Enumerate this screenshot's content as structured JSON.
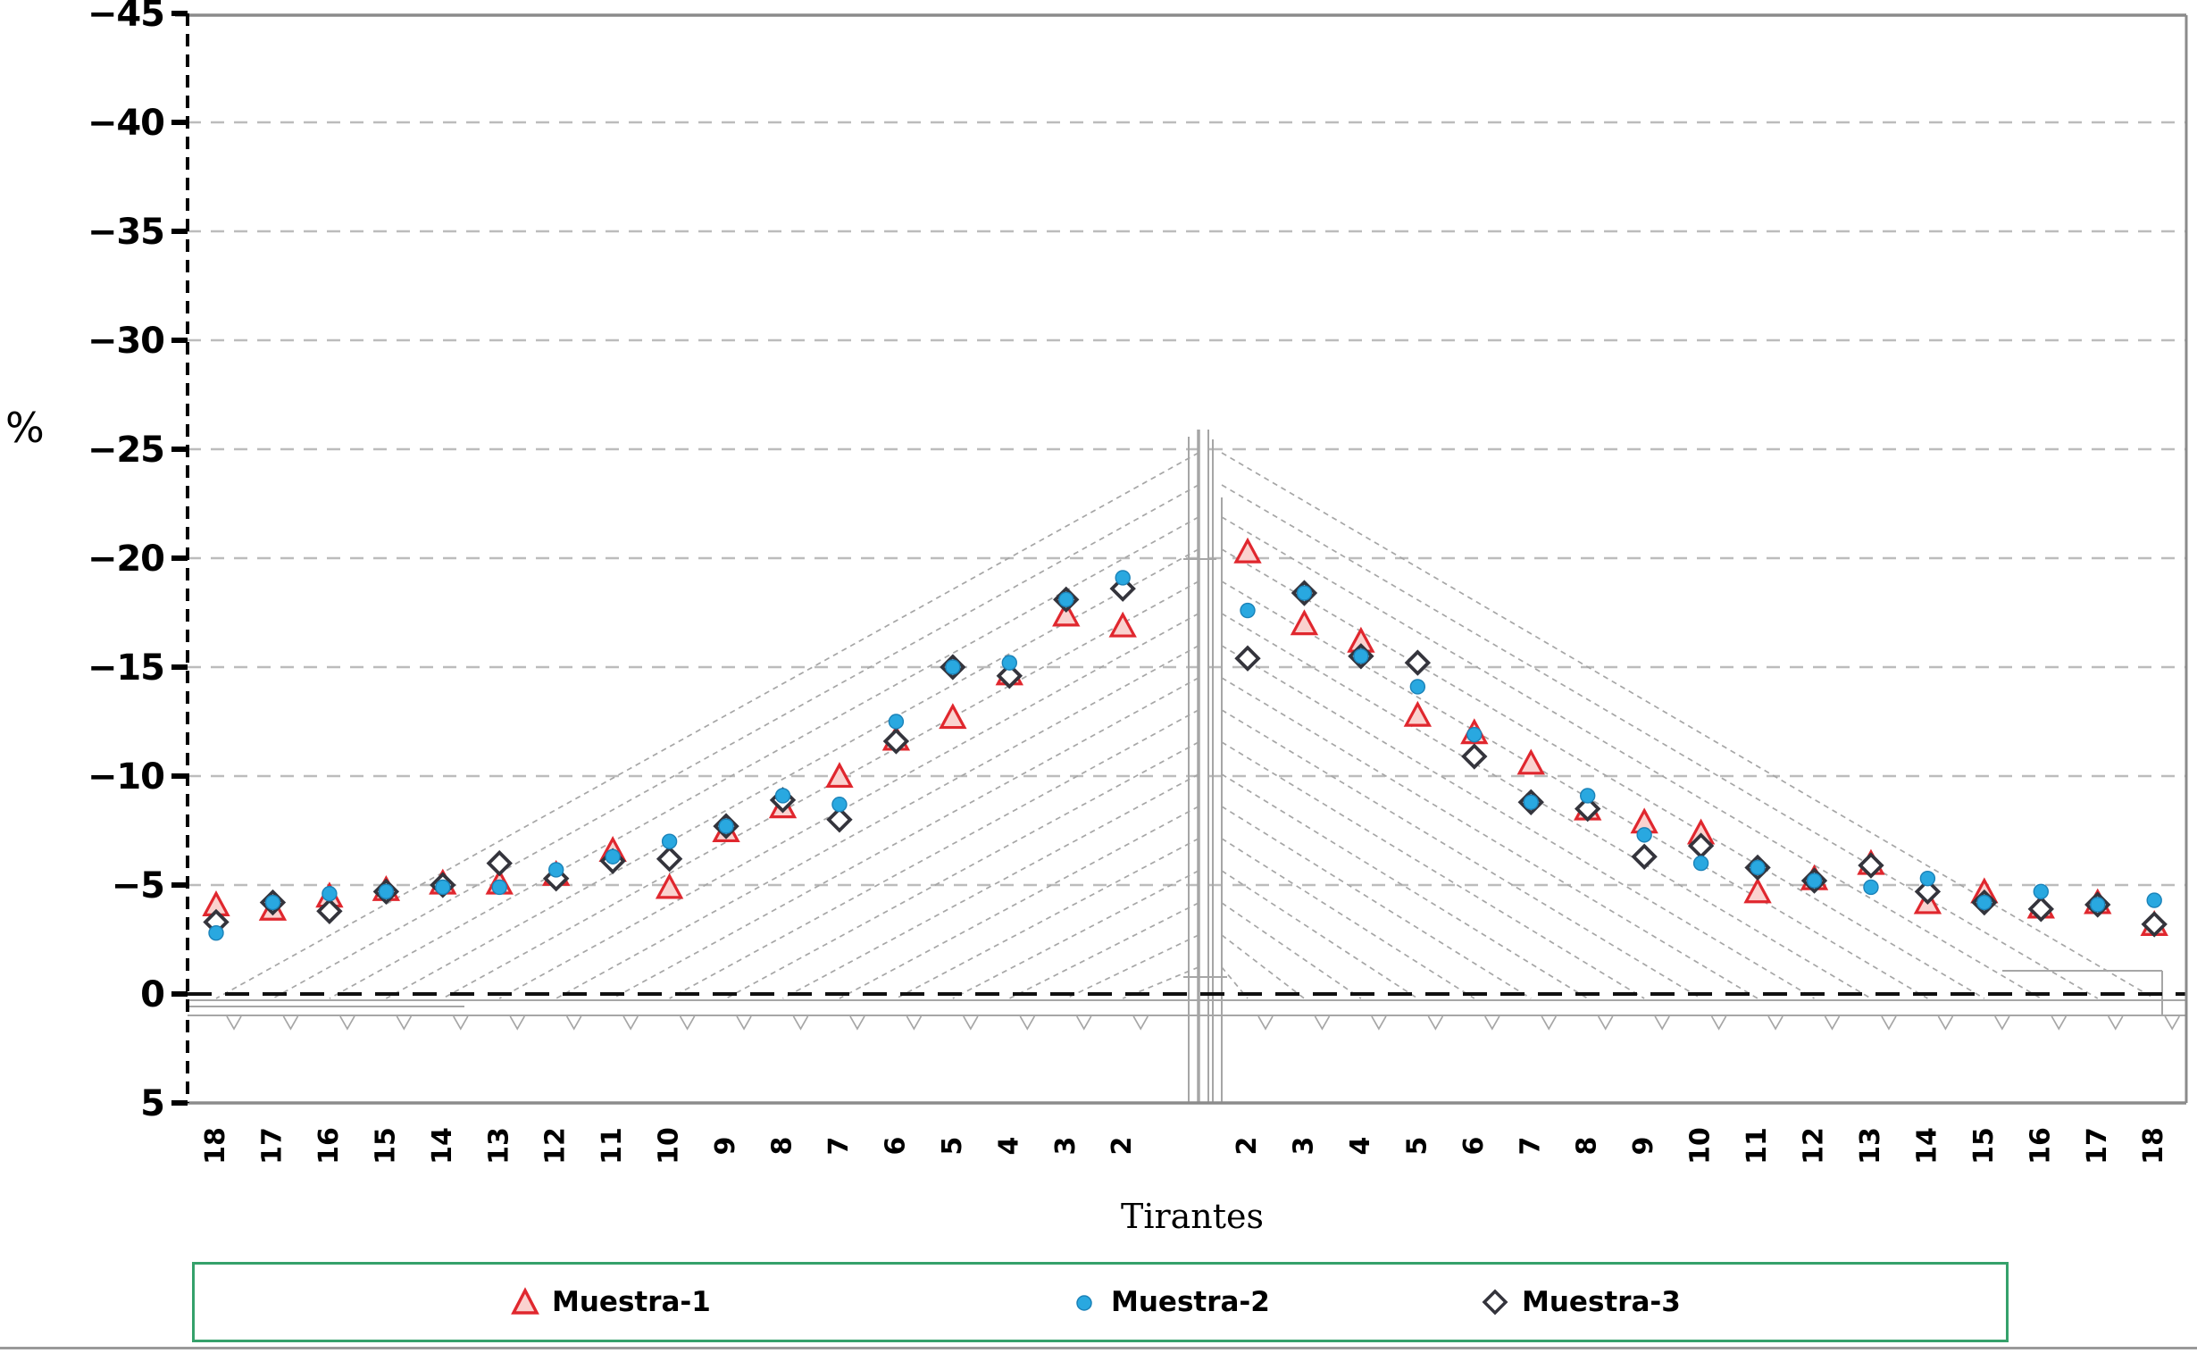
{
  "figure": {
    "ylabel": "%",
    "xlabel": "Tirantes"
  },
  "legend": {
    "items": [
      {
        "label": "Muestra-1",
        "marker": "open-triangle"
      },
      {
        "label": "Muestra-2",
        "marker": "filled-circle"
      },
      {
        "label": "Muestra-3",
        "marker": "open-diamond"
      }
    ],
    "border_color": "#35a16b",
    "position": "bottom"
  },
  "colors": {
    "muestra1_stroke": "#e0272e",
    "muestra1_fill": "#fad2cf",
    "muestra2_fill": "#29a8e0",
    "muestra3_stroke": "#34343c",
    "grid": "#bcbcbc",
    "axis_border": "#8b8b8b",
    "zero_line": "#101010",
    "bridge": "#a6a6a6"
  },
  "chart_data": {
    "type": "scatter",
    "title": "",
    "xlabel": "Tirantes",
    "ylabel": "%",
    "grid": "horizontal dashed gridlines every 5 units",
    "legend_position": "bottom",
    "background_art": "cable-stayed bridge elevation outline (tower, fan cables, deck)",
    "y_axis": {
      "inverted": true,
      "min": -45,
      "max": 5,
      "ticks": [
        -45,
        -40,
        -35,
        -30,
        -25,
        -20,
        -15,
        -10,
        -5,
        0,
        5
      ],
      "tick_labels": [
        "−45",
        "−40",
        "−35",
        "−30",
        "−25",
        "−20",
        "−15",
        "−10",
        "−5",
        "0",
        "5"
      ],
      "zero_line": "black dashed"
    },
    "categories": [
      "18",
      "17",
      "16",
      "15",
      "14",
      "13",
      "12",
      "11",
      "10",
      "9",
      "8",
      "7",
      "6",
      "5",
      "4",
      "3",
      "2",
      "2",
      "3",
      "4",
      "5",
      "6",
      "7",
      "8",
      "9",
      "10",
      "11",
      "12",
      "13",
      "14",
      "15",
      "16",
      "17",
      "18"
    ],
    "x_sides": "left half lists tirantes 18..2, gap at tower, right half lists 2..18",
    "series": [
      {
        "name": "Muestra-1",
        "marker": "open-triangle",
        "color": "#e0272e",
        "values": [
          -4.0,
          -3.8,
          -4.4,
          -4.7,
          -5.0,
          -5.0,
          -5.4,
          -6.5,
          -4.8,
          -7.4,
          -8.5,
          -9.9,
          -11.6,
          -12.6,
          -14.6,
          -17.3,
          -16.8,
          -20.2,
          -16.9,
          -16.1,
          -12.7,
          -11.9,
          -10.5,
          -8.4,
          -7.8,
          -7.3,
          -4.6,
          -5.2,
          -5.9,
          -4.1,
          -4.6,
          -3.9,
          -4.1,
          -3.1
        ]
      },
      {
        "name": "Muestra-2",
        "marker": "filled-circle",
        "color": "#29a8e0",
        "values": [
          -2.8,
          -4.2,
          -4.6,
          -4.7,
          -4.9,
          -4.9,
          -5.7,
          -6.3,
          -7.0,
          -7.7,
          -9.1,
          -8.7,
          -12.5,
          -15.0,
          -15.2,
          -18.1,
          -19.1,
          -17.6,
          -18.4,
          -15.5,
          -14.1,
          -11.9,
          -8.8,
          -9.1,
          -7.3,
          -6.0,
          -5.8,
          -5.2,
          -4.9,
          -5.3,
          -4.2,
          -4.7,
          -4.1,
          -4.3
        ]
      },
      {
        "name": "Muestra-3",
        "marker": "open-diamond",
        "color": "#34343c",
        "values": [
          -3.3,
          -4.2,
          -3.8,
          -4.7,
          -5.0,
          -6.0,
          -5.3,
          -6.1,
          -6.2,
          -7.7,
          -8.9,
          -8.0,
          -11.6,
          -15.0,
          -14.6,
          -18.1,
          -18.6,
          -15.4,
          -18.4,
          -15.5,
          -15.2,
          -10.9,
          -8.8,
          -8.5,
          -6.3,
          -6.8,
          -5.8,
          -5.2,
          -5.9,
          -4.7,
          -4.2,
          -3.9,
          -4.1,
          -3.2
        ]
      }
    ]
  }
}
